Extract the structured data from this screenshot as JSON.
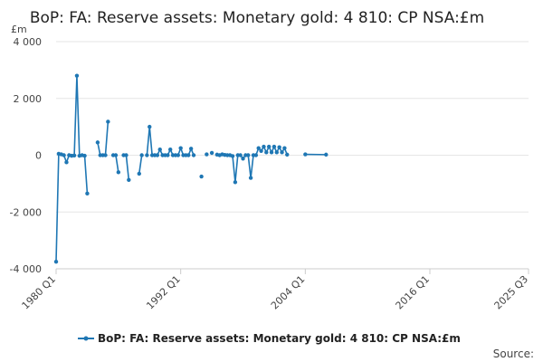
{
  "chart_data": {
    "type": "line",
    "title": "BoP: FA: Reserve assets: Monetary gold: 4 810: CP NSA:£m",
    "ylabel": "£m",
    "xlabel": "",
    "ylim": [
      -4000,
      4000
    ],
    "yticks": [
      -4000,
      -2000,
      0,
      2000,
      4000
    ],
    "ytick_labels": [
      "-4 000",
      "-2 000",
      "0",
      "2 000",
      "4 000"
    ],
    "xlim": [
      "1980 Q1",
      "2025 Q3"
    ],
    "xticks": [
      "1980 Q1",
      "1992 Q1",
      "2004 Q1",
      "2016 Q1",
      "2025 Q3"
    ],
    "grid": true,
    "legend_position": "bottom",
    "color": "#1f77b4",
    "source_label": "Source:",
    "series": [
      {
        "name": "BoP: FA: Reserve assets: Monetary gold: 4 810: CP NSA:£m",
        "points": [
          [
            "1980 Q1",
            -3750
          ],
          [
            "1980 Q2",
            50
          ],
          [
            "1980 Q3",
            30
          ],
          [
            "1980 Q4",
            0
          ],
          [
            "1981 Q1",
            -250
          ],
          [
            "1981 Q2",
            0
          ],
          [
            "1981 Q3",
            -20
          ],
          [
            "1981 Q4",
            -10
          ],
          [
            "1982 Q1",
            2800
          ],
          [
            "1982 Q2",
            -20
          ],
          [
            "1982 Q3",
            0
          ],
          [
            "1982 Q4",
            -20
          ],
          [
            "1983 Q1",
            -1350
          ],
          [
            "1983 Q2",
            null
          ],
          [
            "1983 Q3",
            null
          ],
          [
            "1983 Q4",
            null
          ],
          [
            "1984 Q1",
            450
          ],
          [
            "1984 Q2",
            0
          ],
          [
            "1984 Q3",
            0
          ],
          [
            "1984 Q4",
            0
          ],
          [
            "1985 Q1",
            1180
          ],
          [
            "1985 Q2",
            null
          ],
          [
            "1985 Q3",
            0
          ],
          [
            "1985 Q4",
            0
          ],
          [
            "1986 Q1",
            -600
          ],
          [
            "1986 Q2",
            null
          ],
          [
            "1986 Q3",
            0
          ],
          [
            "1986 Q4",
            0
          ],
          [
            "1987 Q1",
            -870
          ],
          [
            "1987 Q2",
            null
          ],
          [
            "1987 Q3",
            null
          ],
          [
            "1987 Q4",
            null
          ],
          [
            "1988 Q1",
            -650
          ],
          [
            "1988 Q2",
            0
          ],
          [
            "1988 Q3",
            null
          ],
          [
            "1988 Q4",
            0
          ],
          [
            "1989 Q1",
            1000
          ],
          [
            "1989 Q2",
            0
          ],
          [
            "1989 Q3",
            0
          ],
          [
            "1989 Q4",
            0
          ],
          [
            "1990 Q1",
            200
          ],
          [
            "1990 Q2",
            0
          ],
          [
            "1990 Q3",
            0
          ],
          [
            "1990 Q4",
            0
          ],
          [
            "1991 Q1",
            200
          ],
          [
            "1991 Q2",
            0
          ],
          [
            "1991 Q3",
            0
          ],
          [
            "1991 Q4",
            0
          ],
          [
            "1992 Q1",
            250
          ],
          [
            "1992 Q2",
            0
          ],
          [
            "1992 Q3",
            0
          ],
          [
            "1992 Q4",
            0
          ],
          [
            "1993 Q1",
            230
          ],
          [
            "1993 Q2",
            0
          ],
          [
            "1993 Q3",
            null
          ],
          [
            "1993 Q4",
            null
          ],
          [
            "1994 Q1",
            -750
          ],
          [
            "1994 Q2",
            null
          ],
          [
            "1994 Q3",
            30
          ],
          [
            "1994 Q4",
            null
          ],
          [
            "1995 Q1",
            80
          ],
          [
            "1995 Q2",
            null
          ],
          [
            "1995 Q3",
            20
          ],
          [
            "1995 Q4",
            0
          ],
          [
            "1996 Q1",
            30
          ],
          [
            "1996 Q2",
            10
          ],
          [
            "1996 Q3",
            0
          ],
          [
            "1996 Q4",
            0
          ],
          [
            "1997 Q1",
            -30
          ],
          [
            "1997 Q2",
            -950
          ],
          [
            "1997 Q3",
            0
          ],
          [
            "1997 Q4",
            0
          ],
          [
            "1998 Q1",
            -120
          ],
          [
            "1998 Q2",
            0
          ],
          [
            "1998 Q3",
            0
          ],
          [
            "1998 Q4",
            -800
          ],
          [
            "1999 Q1",
            0
          ],
          [
            "1999 Q2",
            0
          ],
          [
            "1999 Q3",
            250
          ],
          [
            "1999 Q4",
            150
          ],
          [
            "2000 Q1",
            300
          ],
          [
            "2000 Q2",
            100
          ],
          [
            "2000 Q3",
            300
          ],
          [
            "2000 Q4",
            100
          ],
          [
            "2001 Q1",
            300
          ],
          [
            "2001 Q2",
            100
          ],
          [
            "2001 Q3",
            280
          ],
          [
            "2001 Q4",
            100
          ],
          [
            "2002 Q1",
            250
          ],
          [
            "2002 Q2",
            20
          ],
          [
            "2002 Q3",
            null
          ],
          [
            "2002 Q4",
            null
          ],
          [
            "2004 Q1",
            30
          ],
          [
            "2006 Q1",
            20
          ]
        ]
      }
    ]
  }
}
